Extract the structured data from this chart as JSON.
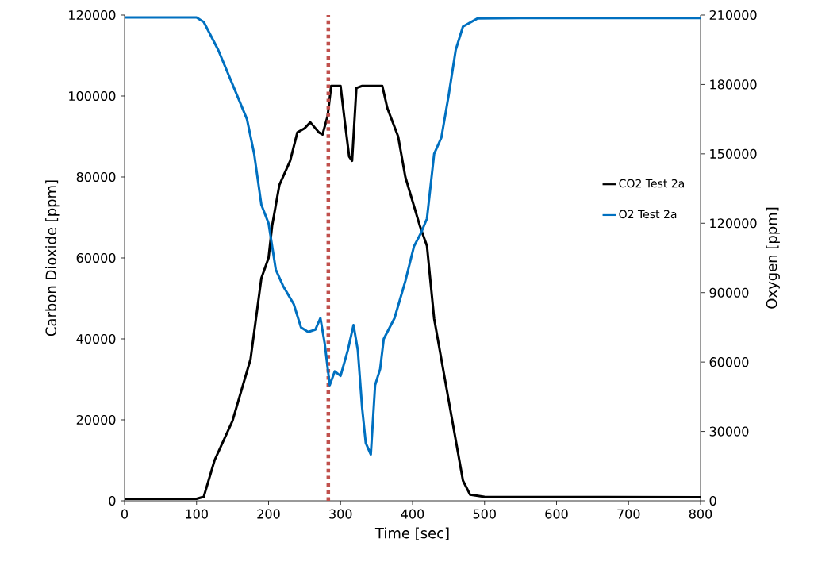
{
  "chart_data": {
    "type": "line",
    "xlabel": "Time [sec]",
    "ylabel": "Carbon Dioxide [ppm]",
    "y2label": "Oxygen [ppm]",
    "xlim": [
      0,
      800
    ],
    "xticks": [
      0,
      100,
      200,
      300,
      400,
      500,
      600,
      700,
      800
    ],
    "ylim": [
      0,
      120000
    ],
    "yticks": [
      0,
      20000,
      40000,
      60000,
      80000,
      100000,
      120000
    ],
    "y2lim": [
      0,
      210000
    ],
    "y2ticks": [
      0,
      30000,
      60000,
      90000,
      120000,
      150000,
      180000,
      210000
    ],
    "grid": false,
    "legend": "right",
    "marker": "none",
    "line_style": "solid",
    "ref_lines": [
      {
        "axis": "x",
        "value": 283,
        "color": "#c0504d",
        "line_style": "dotted"
      }
    ],
    "series": [
      {
        "name": "CO2 Test 2a",
        "color": "#000000",
        "x": [
          0,
          100,
          110,
          115,
          125,
          150,
          175,
          190,
          200,
          205,
          215,
          230,
          240,
          250,
          258,
          270,
          275,
          282,
          287,
          300,
          305,
          312,
          316,
          322,
          330,
          358,
          365,
          380,
          390,
          400,
          410,
          420,
          430,
          440,
          455,
          470,
          480,
          500,
          800
        ],
        "values": [
          500,
          500,
          1000,
          4000,
          10000,
          19800,
          35000,
          55000,
          60000,
          68000,
          78000,
          84000,
          91000,
          92000,
          93500,
          91000,
          90500,
          95000,
          102500,
          102500,
          95000,
          85000,
          84000,
          102000,
          102500,
          102500,
          97000,
          90000,
          80000,
          74000,
          68000,
          63000,
          45000,
          35000,
          20000,
          5000,
          1500,
          1000,
          900
        ]
      },
      {
        "name": "O2 Test 2a",
        "color": "#0070c0",
        "axis": "y2",
        "x": [
          0,
          100,
          110,
          130,
          150,
          170,
          180,
          190,
          200,
          210,
          220,
          235,
          245,
          255,
          265,
          272,
          278,
          285,
          292,
          300,
          310,
          318,
          324,
          330,
          335,
          342,
          348,
          355,
          360,
          375,
          390,
          402,
          412,
          420,
          430,
          440,
          450,
          460,
          470,
          490,
          550,
          800
        ],
        "values": [
          209000,
          209000,
          207000,
          195000,
          180000,
          165000,
          150000,
          128000,
          120000,
          100000,
          93000,
          85000,
          75000,
          73000,
          74000,
          79000,
          68000,
          50000,
          56000,
          54000,
          65000,
          76000,
          65000,
          40000,
          25000,
          20000,
          50000,
          57000,
          70000,
          79000,
          95000,
          110000,
          116000,
          122000,
          150000,
          157000,
          175000,
          195000,
          205000,
          208500,
          208700,
          208700
        ]
      }
    ]
  }
}
